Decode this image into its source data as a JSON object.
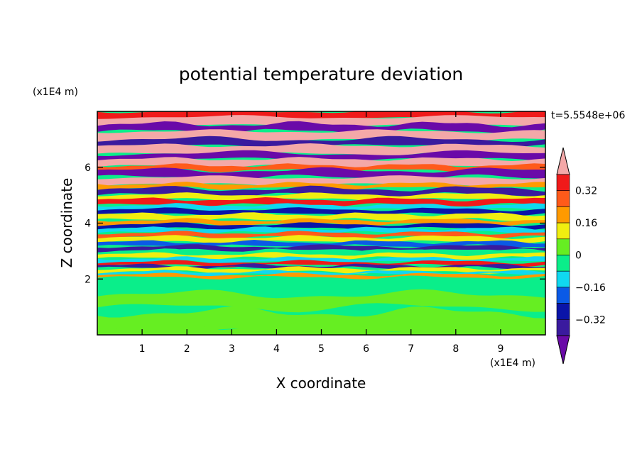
{
  "chart_data": {
    "type": "heatmap",
    "title": "potential temperature deviation",
    "time_label": "t=5.5548e+06",
    "xlabel": "X coordinate",
    "ylabel": "Z coordinate",
    "x_unit": "(x1E4 m)",
    "y_unit": "(x1E4 m)",
    "x_ticks": [
      "1",
      "2",
      "3",
      "4",
      "5",
      "6",
      "7",
      "8",
      "9"
    ],
    "y_ticks": [
      "2",
      "4",
      "6"
    ],
    "xlim": [
      0,
      10
    ],
    "ylim": [
      0,
      8
    ],
    "colorbar": {
      "levels": [
        -0.4,
        -0.32,
        -0.24,
        -0.16,
        -0.08,
        0,
        0.08,
        0.16,
        0.24,
        0.32,
        0.4
      ],
      "tick_labels": [
        "0.32",
        "0.16",
        "0",
        "−0.16",
        "−0.32"
      ],
      "colors": [
        "#6a0aa8",
        "#3a1a9e",
        "#0a14a8",
        "#0a5ae6",
        "#10d8f0",
        "#0aee8a",
        "#66ee22",
        "#f0ee10",
        "#ff9a00",
        "#ff5a1a",
        "#f01a1a",
        "#f4a8a8"
      ]
    }
  }
}
